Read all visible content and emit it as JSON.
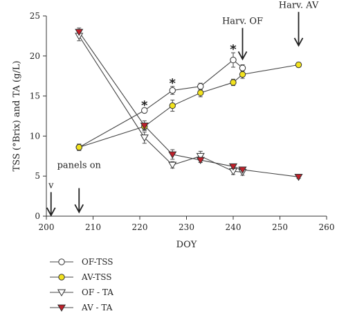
{
  "chart_data": {
    "type": "line",
    "xlabel": "DOY",
    "ylabel": "TSS (°Brix) and TA (g/L)",
    "xlim": [
      200,
      260
    ],
    "ylim": [
      0,
      25
    ],
    "xticks": [
      200,
      210,
      220,
      230,
      240,
      250,
      260
    ],
    "yticks": [
      0,
      5,
      10,
      15,
      20,
      25
    ],
    "grid": false,
    "legend_position": "bottom-left",
    "series": [
      {
        "name": "OF-TSS",
        "marker": "circle",
        "fill": "#ffffff",
        "x": [
          207,
          221,
          227,
          233,
          240,
          242
        ],
        "y": [
          8.6,
          13.2,
          15.7,
          16.2,
          19.5,
          18.5
        ],
        "err": [
          0.4,
          0.3,
          0.5,
          0.4,
          0.9,
          0.4
        ]
      },
      {
        "name": "AV-TSS",
        "marker": "circle",
        "fill": "#f2e21e",
        "x": [
          207,
          221,
          227,
          233,
          240,
          242,
          254
        ],
        "y": [
          8.6,
          11.2,
          13.8,
          15.4,
          16.7,
          17.7,
          18.9
        ],
        "err": [
          0.4,
          0.4,
          0.7,
          0.5,
          0.4,
          0.5,
          0.3
        ]
      },
      {
        "name": "OF - TA",
        "marker": "triangle-down",
        "fill": "#ffffff",
        "x": [
          207,
          221,
          227,
          233,
          240,
          242
        ],
        "y": [
          22.5,
          9.8,
          6.4,
          7.5,
          5.6,
          5.5
        ],
        "err": [
          0.6,
          0.7,
          0.4,
          0.6,
          0.4,
          0.4
        ]
      },
      {
        "name": "AV - TA",
        "marker": "triangle-down",
        "fill": "#c0202a",
        "x": [
          207,
          221,
          227,
          233,
          240,
          242,
          254
        ],
        "y": [
          23.0,
          11.3,
          7.7,
          7.0,
          6.2,
          5.8,
          4.9
        ],
        "err": [
          0.5,
          0.6,
          0.6,
          0.3,
          0.3,
          0.3,
          0.2
        ]
      }
    ],
    "significance_marks": [
      {
        "text": "*",
        "x": 221,
        "y": 14.0
      },
      {
        "text": "*",
        "x": 227,
        "y": 16.8
      },
      {
        "text": "*",
        "x": 240,
        "y": 21.0
      }
    ],
    "annotations": [
      {
        "text": "v",
        "x": 201,
        "y": 3.5
      },
      {
        "text": "panels on",
        "x": 207,
        "y": 6.0
      },
      {
        "text": "Harv. OF",
        "x": 242,
        "y": 24.0
      },
      {
        "text": "Harv. AV",
        "x": 254,
        "y": 26.0
      }
    ],
    "arrows": [
      {
        "x": 201,
        "y_top": 3.0,
        "y_bottom": 0.1
      },
      {
        "x": 207,
        "y_top": 3.5,
        "y_bottom": 0.5
      },
      {
        "x": 242,
        "y_top": 23.5,
        "y_bottom": 19.6
      },
      {
        "x": 254,
        "y_top": 25.5,
        "y_bottom": 21.3
      }
    ]
  }
}
